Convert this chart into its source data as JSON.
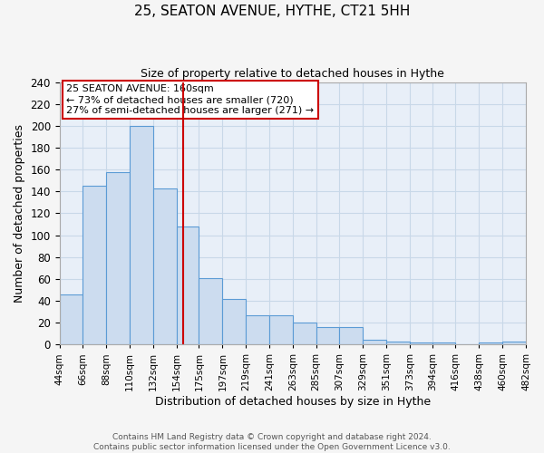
{
  "title": "25, SEATON AVENUE, HYTHE, CT21 5HH",
  "subtitle": "Size of property relative to detached houses in Hythe",
  "xlabel": "Distribution of detached houses by size in Hythe",
  "ylabel": "Number of detached properties",
  "bar_left_edges": [
    44,
    66,
    88,
    110,
    132,
    154,
    175,
    197,
    219,
    241,
    263,
    285,
    307,
    329,
    351,
    373,
    394,
    416,
    438,
    460
  ],
  "bar_widths": [
    22,
    22,
    22,
    22,
    22,
    21,
    22,
    22,
    22,
    22,
    22,
    22,
    22,
    22,
    22,
    21,
    22,
    22,
    22,
    22
  ],
  "bar_heights": [
    46,
    145,
    158,
    200,
    143,
    108,
    61,
    42,
    27,
    27,
    20,
    16,
    16,
    4,
    3,
    2,
    2,
    0,
    2,
    3
  ],
  "bin_labels": [
    "44sqm",
    "66sqm",
    "88sqm",
    "110sqm",
    "132sqm",
    "154sqm",
    "175sqm",
    "197sqm",
    "219sqm",
    "241sqm",
    "263sqm",
    "285sqm",
    "307sqm",
    "329sqm",
    "351sqm",
    "373sqm",
    "394sqm",
    "416sqm",
    "438sqm",
    "460sqm",
    "482sqm"
  ],
  "bar_face_color": "#ccdcef",
  "bar_edge_color": "#5b9bd5",
  "vline_x": 160,
  "vline_color": "#cc0000",
  "annotation_line1": "25 SEATON AVENUE: 160sqm",
  "annotation_line2": "← 73% of detached houses are smaller (720)",
  "annotation_line3": "27% of semi-detached houses are larger (271) →",
  "annotation_box_edge_color": "#cc0000",
  "ylim": [
    0,
    240
  ],
  "yticks": [
    0,
    20,
    40,
    60,
    80,
    100,
    120,
    140,
    160,
    180,
    200,
    220,
    240
  ],
  "grid_color": "#c8d8e8",
  "background_color": "#e8eff8",
  "fig_background_color": "#f5f5f5",
  "footer_line1": "Contains HM Land Registry data © Crown copyright and database right 2024.",
  "footer_line2": "Contains public sector information licensed under the Open Government Licence v3.0."
}
